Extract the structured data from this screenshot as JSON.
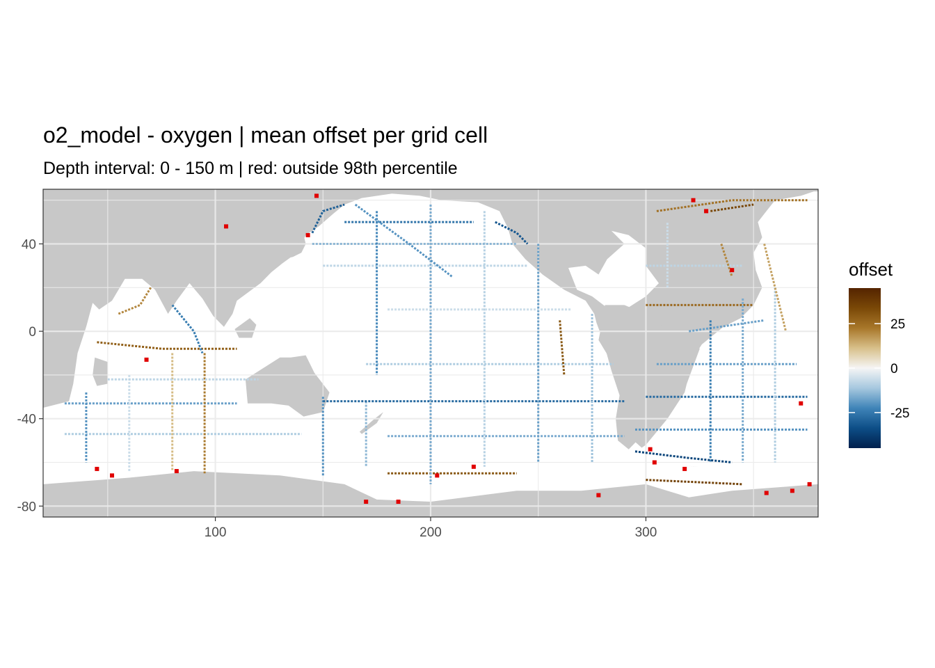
{
  "title": "o2_model - oxygen  | mean offset per grid cell",
  "subtitle": "Depth interval: 0 - 150 m | red: outside 98th percentile",
  "colors": {
    "land": "#c8c8c8",
    "ocean": "#ffffff",
    "gridline": "#ebebeb",
    "outlier": "#e00000",
    "panel_border": "#333333"
  },
  "legend": {
    "title": "offset",
    "ticks": [
      "25",
      "0",
      "-25"
    ],
    "tick_values": [
      25,
      0,
      -25
    ],
    "range": [
      -45,
      45
    ],
    "palette": [
      "#00204d",
      "#0d4e87",
      "#3f84b8",
      "#a6c8df",
      "#f5f5f5",
      "#d8c08a",
      "#a8772a",
      "#7a4807",
      "#542400"
    ]
  },
  "chart_data": {
    "type": "heatmap",
    "title": "o2_model - oxygen  | mean offset per grid cell",
    "subtitle": "Depth interval: 0 - 150 m | red: outside 98th percentile",
    "xlabel": "",
    "ylabel": "",
    "xlim": [
      20,
      380
    ],
    "ylim": [
      -85,
      65
    ],
    "x_ticks": [
      100,
      200,
      300
    ],
    "y_ticks": [
      40,
      0,
      -40,
      -80
    ],
    "x_tick_labels": [
      "100",
      "200",
      "300"
    ],
    "y_tick_labels": [
      "40",
      "0",
      "-40",
      "-80"
    ],
    "grid": true,
    "legend_position": "right",
    "fill_variable": "offset",
    "fill_range": [
      -45,
      45
    ],
    "outlier_rule": "outside 98th percentile"
  }
}
